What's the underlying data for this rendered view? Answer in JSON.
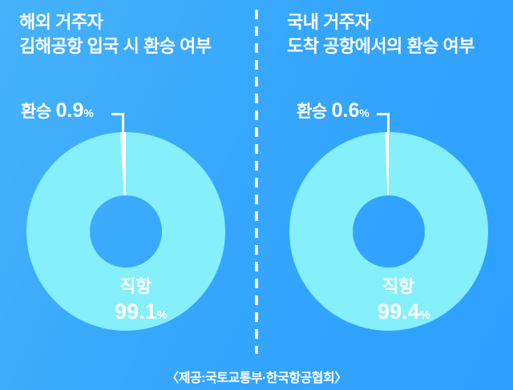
{
  "colors": {
    "background_start": "#46B2FA",
    "background_end": "#2C9FFF",
    "ring": "#85EFFB",
    "transfer_slice": "#FFFFFF",
    "text": "#FFFFFF"
  },
  "panels": [
    {
      "title_line1": "해외 거주자",
      "title_line2": "김해공항 입국 시 환승 여부",
      "transfer_label": "환승",
      "transfer_value": "0.9",
      "transfer_unit": "%",
      "direct_label": "직항",
      "direct_value": "99.1",
      "direct_unit": "%"
    },
    {
      "title_line1": "국내 거주자",
      "title_line2": "도착 공항에서의 환승 여부",
      "transfer_label": "환승",
      "transfer_value": "0.6",
      "transfer_unit": "%",
      "direct_label": "직항",
      "direct_value": "99.4",
      "direct_unit": "%"
    }
  ],
  "source_credit": "〈제공:국토교통부·한국항공협회〉",
  "chart_data": [
    {
      "type": "pie",
      "donut": true,
      "title": "해외 거주자 김해공항 입국 시 환승 여부",
      "categories": [
        "직항",
        "환승"
      ],
      "values": [
        99.1,
        0.9
      ],
      "unit": "%",
      "colors": [
        "#85EFFB",
        "#FFFFFF"
      ],
      "legend_position": "none",
      "start_angle_deg": 90,
      "direction": "clockwise"
    },
    {
      "type": "pie",
      "donut": true,
      "title": "국내 거주자 도착 공항에서의 환승 여부",
      "categories": [
        "직항",
        "환승"
      ],
      "values": [
        99.4,
        0.6
      ],
      "unit": "%",
      "colors": [
        "#85EFFB",
        "#FFFFFF"
      ],
      "legend_position": "none",
      "start_angle_deg": 90,
      "direction": "clockwise"
    }
  ]
}
